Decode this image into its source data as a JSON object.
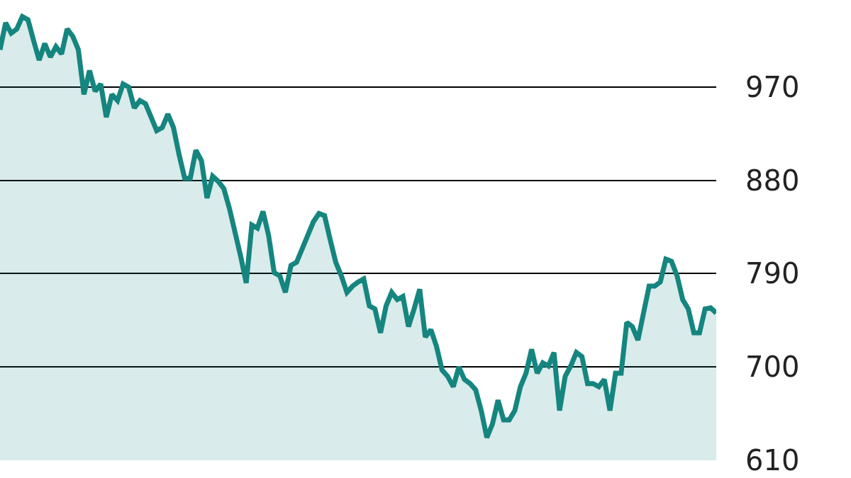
{
  "chart_data": {
    "type": "area",
    "categories": [
      null,
      null,
      null,
      null,
      null,
      null,
      null,
      null,
      null,
      null,
      null,
      null,
      null,
      null,
      null,
      null,
      null,
      null,
      null,
      null,
      null,
      null,
      null,
      null,
      null,
      null,
      null,
      null,
      null,
      null,
      null,
      null,
      null,
      null,
      null,
      null,
      null,
      null,
      null,
      null,
      null,
      null,
      null,
      null,
      null,
      null,
      null,
      null,
      null,
      null,
      null,
      null,
      null,
      null,
      null,
      null,
      null,
      null,
      null,
      null,
      null,
      null,
      null,
      null,
      null,
      null,
      null,
      null,
      null,
      null,
      null,
      null,
      null,
      null,
      null,
      null,
      null,
      null,
      null,
      null,
      null,
      null,
      null,
      null,
      null,
      null,
      null,
      null,
      null,
      null,
      null,
      null,
      null,
      null,
      null,
      null,
      null,
      null,
      null,
      null,
      null,
      null,
      null,
      null,
      null,
      null,
      null,
      null,
      null,
      null,
      null,
      null,
      null,
      null,
      null,
      null,
      null,
      null,
      null,
      null,
      null,
      null,
      null,
      null,
      null,
      null,
      null,
      null,
      null
    ],
    "series": [
      {
        "color": "#15857f",
        "values": [
          1006,
          1032,
          1022,
          1026,
          1038,
          1035,
          1015,
          996,
          1012,
          999,
          1009,
          1002,
          1026,
          1019,
          1006,
          963,
          986,
          966,
          973,
          941,
          963,
          957,
          973,
          970,
          950,
          957,
          954,
          941,
          928,
          931,
          944,
          931,
          905,
          882,
          882,
          909,
          899,
          863,
          884,
          879,
          872,
          853,
          830,
          807,
          781,
          837,
          834,
          850,
          827,
          791,
          788,
          772,
          798,
          801,
          814,
          827,
          840,
          848,
          846,
          823,
          801,
          788,
          772,
          778,
          782,
          785,
          759,
          756,
          733,
          759,
          772,
          765,
          768,
          739,
          756,
          775,
          729,
          736,
          720,
          697,
          691,
          681,
          700,
          688,
          684,
          678,
          658,
          632,
          645,
          668,
          649,
          649,
          658,
          681,
          694,
          717,
          694,
          704,
          701,
          714,
          658,
          691,
          701,
          714,
          710,
          684,
          684,
          681,
          688,
          658,
          694,
          694,
          743,
          739,
          726,
          752,
          778,
          778,
          782,
          804,
          802,
          788,
          765,
          756,
          733,
          733,
          756,
          757,
          752
        ]
      }
    ],
    "ylim": [
      610,
      1054
    ],
    "yticks": [
      610,
      700,
      790,
      880,
      970
    ],
    "grid": "y",
    "legend": false
  }
}
